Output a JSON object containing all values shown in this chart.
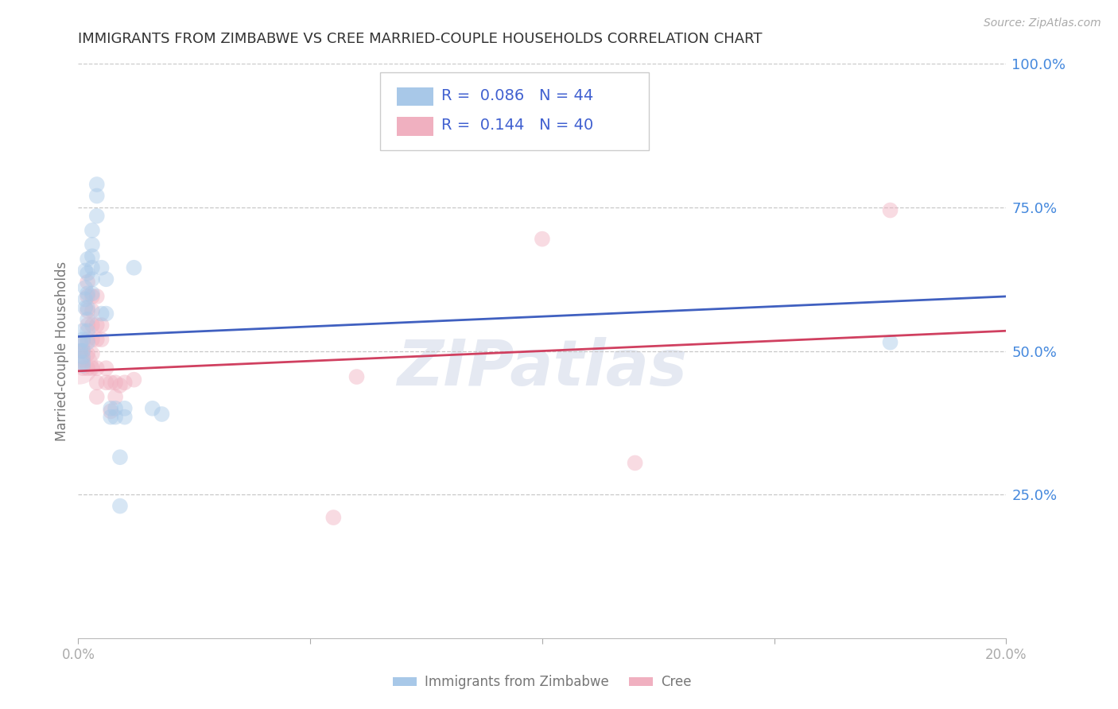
{
  "title": "IMMIGRANTS FROM ZIMBABWE VS CREE MARRIED-COUPLE HOUSEHOLDS CORRELATION CHART",
  "source": "Source: ZipAtlas.com",
  "ylabel": "Married-couple Households",
  "right_ytick_values": [
    1.0,
    0.75,
    0.5,
    0.25
  ],
  "right_ytick_labels": [
    "100.0%",
    "75.0%",
    "50.0%",
    "25.0%"
  ],
  "legend_r_values": [
    "0.086",
    "0.144"
  ],
  "legend_n_values": [
    "44",
    "40"
  ],
  "blue_scatter": [
    [
      0.0005,
      0.515
    ],
    [
      0.0005,
      0.5
    ],
    [
      0.001,
      0.535
    ],
    [
      0.001,
      0.52
    ],
    [
      0.001,
      0.5
    ],
    [
      0.001,
      0.49
    ],
    [
      0.001,
      0.48
    ],
    [
      0.001,
      0.475
    ],
    [
      0.0015,
      0.64
    ],
    [
      0.0015,
      0.61
    ],
    [
      0.0015,
      0.59
    ],
    [
      0.0015,
      0.575
    ],
    [
      0.002,
      0.66
    ],
    [
      0.002,
      0.635
    ],
    [
      0.002,
      0.6
    ],
    [
      0.002,
      0.575
    ],
    [
      0.002,
      0.555
    ],
    [
      0.002,
      0.535
    ],
    [
      0.002,
      0.515
    ],
    [
      0.003,
      0.71
    ],
    [
      0.003,
      0.685
    ],
    [
      0.003,
      0.665
    ],
    [
      0.003,
      0.645
    ],
    [
      0.003,
      0.625
    ],
    [
      0.003,
      0.6
    ],
    [
      0.004,
      0.79
    ],
    [
      0.004,
      0.77
    ],
    [
      0.004,
      0.735
    ],
    [
      0.005,
      0.645
    ],
    [
      0.005,
      0.565
    ],
    [
      0.006,
      0.625
    ],
    [
      0.006,
      0.565
    ],
    [
      0.007,
      0.4
    ],
    [
      0.007,
      0.385
    ],
    [
      0.008,
      0.4
    ],
    [
      0.008,
      0.385
    ],
    [
      0.009,
      0.315
    ],
    [
      0.009,
      0.23
    ],
    [
      0.01,
      0.4
    ],
    [
      0.01,
      0.385
    ],
    [
      0.016,
      0.4
    ],
    [
      0.018,
      0.39
    ],
    [
      0.175,
      0.515
    ],
    [
      0.012,
      0.645
    ]
  ],
  "pink_scatter": [
    [
      0.0005,
      0.5
    ],
    [
      0.001,
      0.515
    ],
    [
      0.001,
      0.5
    ],
    [
      0.001,
      0.485
    ],
    [
      0.001,
      0.47
    ],
    [
      0.002,
      0.62
    ],
    [
      0.002,
      0.595
    ],
    [
      0.002,
      0.57
    ],
    [
      0.002,
      0.545
    ],
    [
      0.002,
      0.52
    ],
    [
      0.002,
      0.495
    ],
    [
      0.002,
      0.47
    ],
    [
      0.003,
      0.595
    ],
    [
      0.003,
      0.57
    ],
    [
      0.003,
      0.545
    ],
    [
      0.003,
      0.52
    ],
    [
      0.003,
      0.495
    ],
    [
      0.003,
      0.47
    ],
    [
      0.004,
      0.595
    ],
    [
      0.004,
      0.545
    ],
    [
      0.004,
      0.52
    ],
    [
      0.004,
      0.47
    ],
    [
      0.004,
      0.445
    ],
    [
      0.004,
      0.42
    ],
    [
      0.005,
      0.545
    ],
    [
      0.005,
      0.52
    ],
    [
      0.006,
      0.47
    ],
    [
      0.006,
      0.445
    ],
    [
      0.007,
      0.445
    ],
    [
      0.007,
      0.395
    ],
    [
      0.008,
      0.445
    ],
    [
      0.008,
      0.42
    ],
    [
      0.009,
      0.44
    ],
    [
      0.01,
      0.445
    ],
    [
      0.012,
      0.45
    ],
    [
      0.1,
      0.695
    ],
    [
      0.12,
      0.305
    ],
    [
      0.175,
      0.745
    ],
    [
      0.06,
      0.455
    ],
    [
      0.055,
      0.21
    ]
  ],
  "blue_line_x": [
    0.0,
    0.2
  ],
  "blue_line_y": [
    0.525,
    0.595
  ],
  "pink_line_x": [
    0.0,
    0.2
  ],
  "pink_line_y": [
    0.465,
    0.535
  ],
  "xlim": [
    0.0,
    0.2
  ],
  "ylim": [
    0.0,
    1.0
  ],
  "background_color": "#ffffff",
  "plot_bg_color": "#ffffff",
  "grid_color": "#c8c8c8",
  "blue_color": "#a8c8e8",
  "pink_color": "#f0b0c0",
  "line_blue_color": "#4060c0",
  "line_pink_color": "#d04060",
  "title_color": "#333333",
  "axis_label_color": "#777777",
  "right_axis_color": "#4488dd",
  "xtick_color": "#aaaaaa",
  "watermark": "ZIPatlas",
  "scatter_size": 200,
  "scatter_alpha": 0.45,
  "legend_blue_color": "#a8c8e8",
  "legend_pink_color": "#f0b0c0",
  "legend_text_color": "#4060d0",
  "bottom_legend_label_blue": "Immigrants from Zimbabwe",
  "bottom_legend_label_pink": "Cree"
}
